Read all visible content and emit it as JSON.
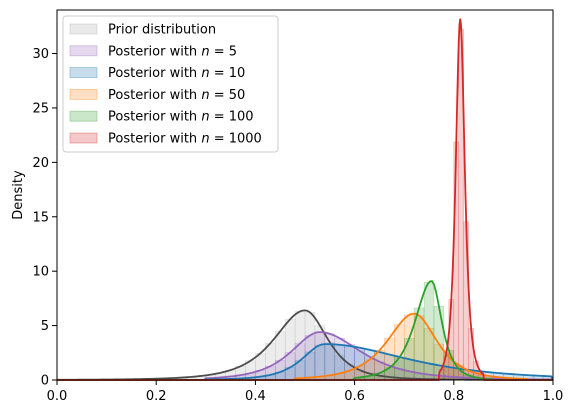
{
  "chart_data": {
    "type": "area",
    "ylabel": "Density",
    "xlim": [
      0.0,
      1.0
    ],
    "ylim": [
      0,
      34
    ],
    "x_ticks": [
      "0.0",
      "0.2",
      "0.4",
      "0.6",
      "0.8",
      "1.0"
    ],
    "y_ticks": [
      "0",
      "5",
      "10",
      "15",
      "20",
      "25",
      "30"
    ],
    "legend_position": "top-left",
    "grid": false,
    "series": [
      {
        "name": "Prior distribution",
        "hist_color": "#a8a8a8",
        "line_color": "#4d4d4d",
        "mode": 0.5,
        "peak": 6.4,
        "sigma_left": 0.075,
        "sigma_right": 0.055,
        "range": [
          0.0,
          1.0
        ]
      },
      {
        "name": "Posterior with n = 5",
        "hist_color": "#9467bd",
        "line_color": "#9467bd",
        "mode": 0.53,
        "peak": 4.4,
        "sigma_left": 0.07,
        "sigma_right": 0.1,
        "range": [
          0.3,
          1.0
        ]
      },
      {
        "name": "Posterior with n = 10",
        "hist_color": "#1f77b4",
        "line_color": "#1f77b4",
        "mode": 0.54,
        "peak": 3.3,
        "sigma_left": 0.055,
        "sigma_right": 0.2,
        "range": [
          0.3,
          1.0
        ]
      },
      {
        "name": "Posterior with n = 50",
        "hist_color": "#ff7f0e",
        "line_color": "#ff7f0e",
        "mode": 0.72,
        "peak": 6.1,
        "sigma_left": 0.065,
        "sigma_right": 0.055,
        "range": [
          0.48,
          0.95
        ]
      },
      {
        "name": "Posterior with n = 100",
        "hist_color": "#2ca02c",
        "line_color": "#2ca02c",
        "mode": 0.755,
        "peak": 9.1,
        "sigma_left": 0.04,
        "sigma_right": 0.025,
        "range": [
          0.6,
          0.88
        ]
      },
      {
        "name": "Posterior with n = 1000",
        "hist_color": "#d62728",
        "line_color": "#d62728",
        "mode": 0.813,
        "peak": 33.2,
        "sigma_left": 0.011,
        "sigma_right": 0.011,
        "range": [
          0.77,
          0.86
        ]
      }
    ]
  },
  "legend": {
    "items": [
      {
        "prefix": "Prior distribution",
        "n": ""
      },
      {
        "prefix": "Posterior with ",
        "n": "5"
      },
      {
        "prefix": "Posterior with ",
        "n": "10"
      },
      {
        "prefix": "Posterior with ",
        "n": "50"
      },
      {
        "prefix": "Posterior with ",
        "n": "100"
      },
      {
        "prefix": "Posterior with ",
        "n": "1000"
      }
    ]
  }
}
